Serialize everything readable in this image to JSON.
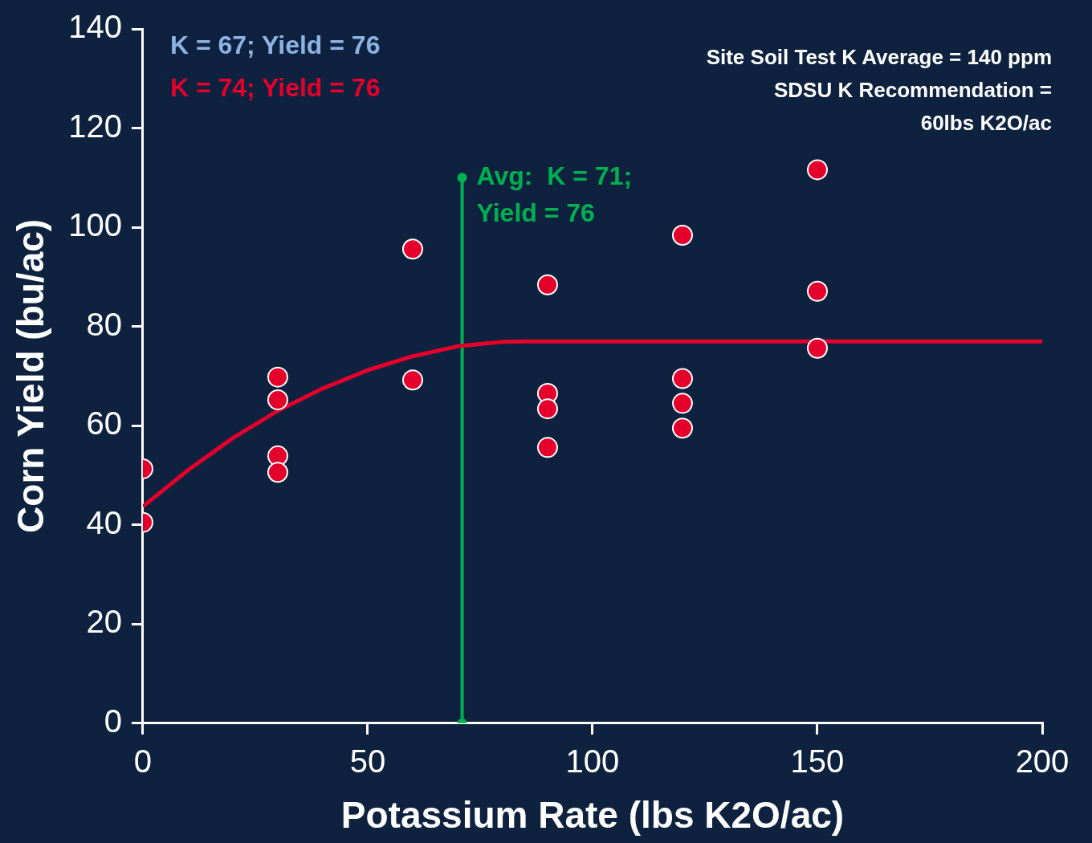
{
  "chart_data": {
    "type": "scatter",
    "xlabel": "Potassium Rate (lbs K2O/ac)",
    "ylabel": "Corn Yield (bu/ac)",
    "xlim": [
      0,
      200
    ],
    "xticks": [
      0,
      50,
      100,
      150,
      200
    ],
    "ylim": [
      0,
      140
    ],
    "yticks": [
      0,
      20,
      40,
      60,
      80,
      100,
      120,
      140
    ],
    "grid": false,
    "legend": false,
    "series": [
      {
        "color": "#e4002b",
        "marker": "circle",
        "x": [
          0,
          0,
          30,
          30,
          30,
          30,
          60,
          60,
          90,
          90,
          90,
          90,
          120,
          120,
          120,
          120,
          150,
          150,
          150
        ],
        "values": [
          51.3,
          40.5,
          69.8,
          65.2,
          53.9,
          50.6,
          95.6,
          69.2,
          88.4,
          66.5,
          63.4,
          55.6,
          98.4,
          69.5,
          64.5,
          59.5,
          111.6,
          87.1,
          75.6
        ]
      },
      {
        "type": "line",
        "color": "#e4002b",
        "marker": "none",
        "x": [
          0,
          10,
          20,
          30,
          40,
          50,
          60,
          70,
          80,
          85,
          200
        ],
        "values": [
          43.7,
          51,
          57.5,
          63,
          67.5,
          71.2,
          74,
          76,
          76.9,
          77,
          77
        ]
      },
      {
        "type": "line",
        "color": "#00b050",
        "marker": "circle",
        "x": [
          71,
          71
        ],
        "values": [
          0,
          110
        ]
      }
    ],
    "annotations": [
      "K = 67; Yield = 76",
      "K = 74; Yield = 76",
      "Site Soil Test K Average = 140 ppm\nSDSU K Recommendation =\n60lbs K2O/ac",
      {
        "text": "Avg:  K = 71;\nYield = 76",
        "x": 71,
        "y": 110
      }
    ]
  }
}
